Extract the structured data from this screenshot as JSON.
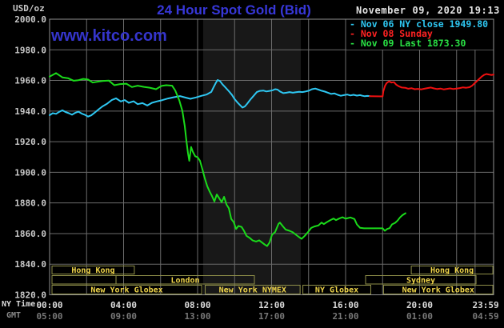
{
  "header": {
    "unit_label": "USD/oz",
    "title": "24 Hour Spot Gold (Bid)",
    "datetime": "November 09, 2020 19:13",
    "watermark": "www.kitco.com"
  },
  "axes": {
    "ny_label": "NY Time",
    "gmt_label": "GMT",
    "y_tick_labels": [
      "2000.0",
      "1980.0",
      "1960.0",
      "1940.0",
      "1920.0",
      "1900.0",
      "1880.0",
      "1860.0",
      "1840.0",
      "1820.0"
    ],
    "x_ticks": [
      {
        "h": 0,
        "ny": "00:00",
        "gmt": "05:00"
      },
      {
        "h": 4,
        "ny": "04:00",
        "gmt": "09:00"
      },
      {
        "h": 8,
        "ny": "08:00",
        "gmt": "13:00"
      },
      {
        "h": 12,
        "ny": "12:00",
        "gmt": "17:00"
      },
      {
        "h": 16,
        "ny": "16:00",
        "gmt": "21:00"
      },
      {
        "h": 20,
        "ny": "20:00",
        "gmt": "01:00"
      },
      {
        "h": 23.57,
        "ny": "23:59",
        "gmt": "04:59"
      }
    ]
  },
  "legend": [
    {
      "label": "- Nov 06 NY close 1949.80",
      "color": "#2EC7F2"
    },
    {
      "label": "- Nov 08 Sunday",
      "color": "#FF2222"
    },
    {
      "label": "- Nov 09 Last 1873.30",
      "color": "#29E244"
    }
  ],
  "sessions": [
    {
      "row": 0,
      "label": "Hong Kong",
      "start": 0.13,
      "end": 4.58
    },
    {
      "row": 0,
      "label": "Hong Kong",
      "start": 19.55,
      "end": 23.96
    },
    {
      "row": 1,
      "label": "",
      "start": 0.13,
      "end": 3.59
    },
    {
      "row": 1,
      "label": "London",
      "start": 3.59,
      "end": 11.07
    },
    {
      "row": 1,
      "label": "Sydney",
      "start": 17.08,
      "end": 23.05
    },
    {
      "row": 2,
      "label": "New York Globex",
      "start": 0.13,
      "end": 8.22
    },
    {
      "row": 2,
      "label": "New York NYMEX",
      "start": 8.41,
      "end": 13.54
    },
    {
      "row": 2,
      "label": "NY Globex",
      "start": 13.69,
      "end": 17.36
    },
    {
      "row": 2,
      "label": "New York Globex",
      "start": 18.05,
      "end": 23.96
    }
  ],
  "chart_data": {
    "type": "line",
    "title": "24 Hour Spot Gold (Bid)",
    "xlabel": "NY Time (hours 00:00-23:59)",
    "ylabel": "USD/oz",
    "x_range": [
      0,
      24
    ],
    "y_range": [
      1820,
      2000
    ],
    "grid": true,
    "y_grid_step": 20,
    "v_grid_hours": [
      2,
      4,
      6,
      8,
      10,
      12,
      14,
      16,
      18,
      20,
      22,
      23
    ],
    "highlight_band": {
      "start_h": 8.3,
      "end_h": 13.58,
      "color": "#181818"
    },
    "colors": {
      "grid": "#6B6B6B",
      "frame": "#8F8F8F",
      "session_border": "#8F8F49",
      "session_text": "#EFD54A"
    },
    "series": [
      {
        "name": "Nov 06 NY close",
        "color": "#2EC7F2",
        "last_value": 1949.8,
        "points": [
          [
            0.0,
            1937.3
          ],
          [
            0.17,
            1938.6
          ],
          [
            0.35,
            1938.2
          ],
          [
            0.52,
            1939.5
          ],
          [
            0.69,
            1940.5
          ],
          [
            0.86,
            1939.4
          ],
          [
            1.04,
            1938.6
          ],
          [
            1.21,
            1937.6
          ],
          [
            1.38,
            1938.8
          ],
          [
            1.56,
            1939.6
          ],
          [
            1.73,
            1938.4
          ],
          [
            1.9,
            1937.6
          ],
          [
            2.08,
            1936.4
          ],
          [
            2.25,
            1937.2
          ],
          [
            2.42,
            1938.8
          ],
          [
            2.64,
            1941.0
          ],
          [
            2.85,
            1943.0
          ],
          [
            3.11,
            1944.8
          ],
          [
            3.37,
            1947.3
          ],
          [
            3.59,
            1948.3
          ],
          [
            3.85,
            1946.3
          ],
          [
            4.06,
            1947.2
          ],
          [
            4.28,
            1945.4
          ],
          [
            4.54,
            1946.4
          ],
          [
            4.76,
            1944.5
          ],
          [
            5.02,
            1945.2
          ],
          [
            5.28,
            1943.6
          ],
          [
            5.53,
            1945.4
          ],
          [
            5.79,
            1946.3
          ],
          [
            6.1,
            1947.2
          ],
          [
            6.4,
            1948.2
          ],
          [
            6.7,
            1949.0
          ],
          [
            7.05,
            1949.8
          ],
          [
            7.35,
            1948.8
          ],
          [
            7.61,
            1948.0
          ],
          [
            7.91,
            1948.9
          ],
          [
            8.22,
            1950.0
          ],
          [
            8.48,
            1950.8
          ],
          [
            8.74,
            1952.5
          ],
          [
            8.86,
            1955.5
          ],
          [
            8.99,
            1958.5
          ],
          [
            9.08,
            1960.3
          ],
          [
            9.21,
            1959.6
          ],
          [
            9.34,
            1957.5
          ],
          [
            9.51,
            1955.4
          ],
          [
            9.69,
            1953.0
          ],
          [
            9.86,
            1950.5
          ],
          [
            9.99,
            1948.0
          ],
          [
            10.16,
            1945.5
          ],
          [
            10.42,
            1942.3
          ],
          [
            10.55,
            1943.0
          ],
          [
            10.68,
            1944.8
          ],
          [
            10.85,
            1947.5
          ],
          [
            11.03,
            1950.0
          ],
          [
            11.2,
            1952.4
          ],
          [
            11.37,
            1953.2
          ],
          [
            11.55,
            1953.4
          ],
          [
            11.72,
            1952.8
          ],
          [
            11.89,
            1953.2
          ],
          [
            12.06,
            1953.6
          ],
          [
            12.19,
            1954.3
          ],
          [
            12.32,
            1954.0
          ],
          [
            12.45,
            1952.8
          ],
          [
            12.63,
            1951.7
          ],
          [
            12.8,
            1952.0
          ],
          [
            12.97,
            1952.4
          ],
          [
            13.15,
            1952.0
          ],
          [
            13.32,
            1952.3
          ],
          [
            13.49,
            1952.6
          ],
          [
            13.66,
            1952.4
          ],
          [
            13.84,
            1952.8
          ],
          [
            14.01,
            1953.3
          ],
          [
            14.18,
            1954.3
          ],
          [
            14.36,
            1954.7
          ],
          [
            14.53,
            1954.0
          ],
          [
            14.7,
            1953.3
          ],
          [
            14.88,
            1952.7
          ],
          [
            15.05,
            1952.0
          ],
          [
            15.22,
            1951.2
          ],
          [
            15.4,
            1951.5
          ],
          [
            15.57,
            1950.6
          ],
          [
            15.74,
            1950.0
          ],
          [
            15.91,
            1950.4
          ],
          [
            16.09,
            1950.8
          ],
          [
            16.26,
            1950.2
          ],
          [
            16.43,
            1950.6
          ],
          [
            16.61,
            1950.1
          ],
          [
            16.78,
            1950.4
          ],
          [
            16.91,
            1950.0
          ],
          [
            17.04,
            1949.7
          ],
          [
            17.17,
            1949.9
          ],
          [
            17.3,
            1949.8
          ]
        ]
      },
      {
        "name": "Nov 08 Sunday",
        "color": "#F01010",
        "points": [
          [
            17.3,
            1949.7
          ],
          [
            18.0,
            1949.6
          ],
          [
            18.04,
            1953.0
          ],
          [
            18.13,
            1956.5
          ],
          [
            18.22,
            1958.3
          ],
          [
            18.35,
            1959.4
          ],
          [
            18.48,
            1958.6
          ],
          [
            18.61,
            1958.9
          ],
          [
            18.74,
            1957.2
          ],
          [
            18.87,
            1956.2
          ],
          [
            19.04,
            1955.4
          ],
          [
            19.22,
            1955.2
          ],
          [
            19.39,
            1954.6
          ],
          [
            19.57,
            1954.9
          ],
          [
            19.74,
            1954.3
          ],
          [
            19.91,
            1954.5
          ],
          [
            20.09,
            1954.2
          ],
          [
            20.26,
            1954.6
          ],
          [
            20.43,
            1955.0
          ],
          [
            20.61,
            1955.4
          ],
          [
            20.78,
            1954.8
          ],
          [
            20.95,
            1954.4
          ],
          [
            21.13,
            1954.7
          ],
          [
            21.3,
            1954.2
          ],
          [
            21.48,
            1954.5
          ],
          [
            21.65,
            1954.8
          ],
          [
            21.82,
            1954.4
          ],
          [
            22.0,
            1954.7
          ],
          [
            22.17,
            1955.0
          ],
          [
            22.35,
            1955.5
          ],
          [
            22.52,
            1955.2
          ],
          [
            22.7,
            1955.6
          ],
          [
            22.83,
            1956.5
          ],
          [
            22.96,
            1958.0
          ],
          [
            23.09,
            1959.5
          ],
          [
            23.22,
            1961.0
          ],
          [
            23.35,
            1962.5
          ],
          [
            23.48,
            1963.6
          ],
          [
            23.61,
            1964.2
          ],
          [
            23.74,
            1963.9
          ],
          [
            23.87,
            1963.6
          ],
          [
            24.0,
            1963.8
          ]
        ]
      },
      {
        "name": "Nov 09 Last",
        "color": "#1ADB1A",
        "last_value": 1873.3,
        "points": [
          [
            0.0,
            1962.5
          ],
          [
            0.35,
            1964.8
          ],
          [
            0.69,
            1962.0
          ],
          [
            0.99,
            1961.5
          ],
          [
            1.3,
            1959.8
          ],
          [
            1.56,
            1960.2
          ],
          [
            1.82,
            1961.0
          ],
          [
            2.08,
            1960.6
          ],
          [
            2.33,
            1958.6
          ],
          [
            2.59,
            1959.2
          ],
          [
            2.9,
            1959.7
          ],
          [
            3.2,
            1959.9
          ],
          [
            3.5,
            1956.9
          ],
          [
            3.81,
            1957.6
          ],
          [
            4.15,
            1957.9
          ],
          [
            4.45,
            1955.7
          ],
          [
            4.76,
            1956.6
          ],
          [
            5.1,
            1955.8
          ],
          [
            5.41,
            1955.3
          ],
          [
            5.75,
            1954.3
          ],
          [
            6.05,
            1956.4
          ],
          [
            6.31,
            1956.9
          ],
          [
            6.62,
            1956.6
          ],
          [
            6.79,
            1953.5
          ],
          [
            7.01,
            1947.0
          ],
          [
            7.18,
            1940.0
          ],
          [
            7.31,
            1930.0
          ],
          [
            7.39,
            1921.0
          ],
          [
            7.48,
            1912.5
          ],
          [
            7.55,
            1907.5
          ],
          [
            7.65,
            1916.5
          ],
          [
            7.74,
            1913.5
          ],
          [
            7.87,
            1910.5
          ],
          [
            8.0,
            1909.8
          ],
          [
            8.13,
            1907.5
          ],
          [
            8.26,
            1902.0
          ],
          [
            8.39,
            1896.0
          ],
          [
            8.52,
            1891.0
          ],
          [
            8.65,
            1887.5
          ],
          [
            8.78,
            1884.5
          ],
          [
            8.91,
            1881.0
          ],
          [
            9.04,
            1885.5
          ],
          [
            9.17,
            1883.0
          ],
          [
            9.3,
            1880.5
          ],
          [
            9.43,
            1884.0
          ],
          [
            9.56,
            1879.0
          ],
          [
            9.69,
            1876.5
          ],
          [
            9.82,
            1869.5
          ],
          [
            9.95,
            1867.5
          ],
          [
            10.08,
            1863.0
          ],
          [
            10.21,
            1865.0
          ],
          [
            10.38,
            1864.3
          ],
          [
            10.51,
            1861.8
          ],
          [
            10.64,
            1858.5
          ],
          [
            10.81,
            1857.2
          ],
          [
            10.98,
            1855.5
          ],
          [
            11.16,
            1854.8
          ],
          [
            11.33,
            1855.6
          ],
          [
            11.5,
            1854.0
          ],
          [
            11.63,
            1852.8
          ],
          [
            11.76,
            1851.8
          ],
          [
            11.89,
            1854.2
          ],
          [
            12.02,
            1859.2
          ],
          [
            12.19,
            1861.0
          ],
          [
            12.37,
            1866.3
          ],
          [
            12.45,
            1867.2
          ],
          [
            12.63,
            1864.4
          ],
          [
            12.76,
            1862.6
          ],
          [
            12.97,
            1861.8
          ],
          [
            13.15,
            1860.8
          ],
          [
            13.32,
            1859.2
          ],
          [
            13.49,
            1857.6
          ],
          [
            13.62,
            1856.6
          ],
          [
            13.79,
            1858.5
          ],
          [
            13.97,
            1861.0
          ],
          [
            14.14,
            1863.7
          ],
          [
            14.31,
            1864.6
          ],
          [
            14.53,
            1865.3
          ],
          [
            14.7,
            1867.2
          ],
          [
            14.83,
            1866.2
          ],
          [
            14.96,
            1867.3
          ],
          [
            15.18,
            1868.8
          ],
          [
            15.35,
            1869.8
          ],
          [
            15.48,
            1868.8
          ],
          [
            15.65,
            1869.8
          ],
          [
            15.83,
            1870.7
          ],
          [
            16.0,
            1869.7
          ],
          [
            16.26,
            1870.5
          ],
          [
            16.48,
            1869.5
          ],
          [
            16.61,
            1866.0
          ],
          [
            16.78,
            1863.8
          ],
          [
            17.0,
            1863.4
          ],
          [
            18.0,
            1863.4
          ],
          [
            18.12,
            1861.8
          ],
          [
            18.25,
            1863.0
          ],
          [
            18.38,
            1863.5
          ],
          [
            18.51,
            1866.0
          ],
          [
            18.68,
            1867.0
          ],
          [
            18.81,
            1868.5
          ],
          [
            18.94,
            1870.5
          ],
          [
            19.07,
            1872.0
          ],
          [
            19.24,
            1873.3
          ]
        ]
      }
    ]
  }
}
